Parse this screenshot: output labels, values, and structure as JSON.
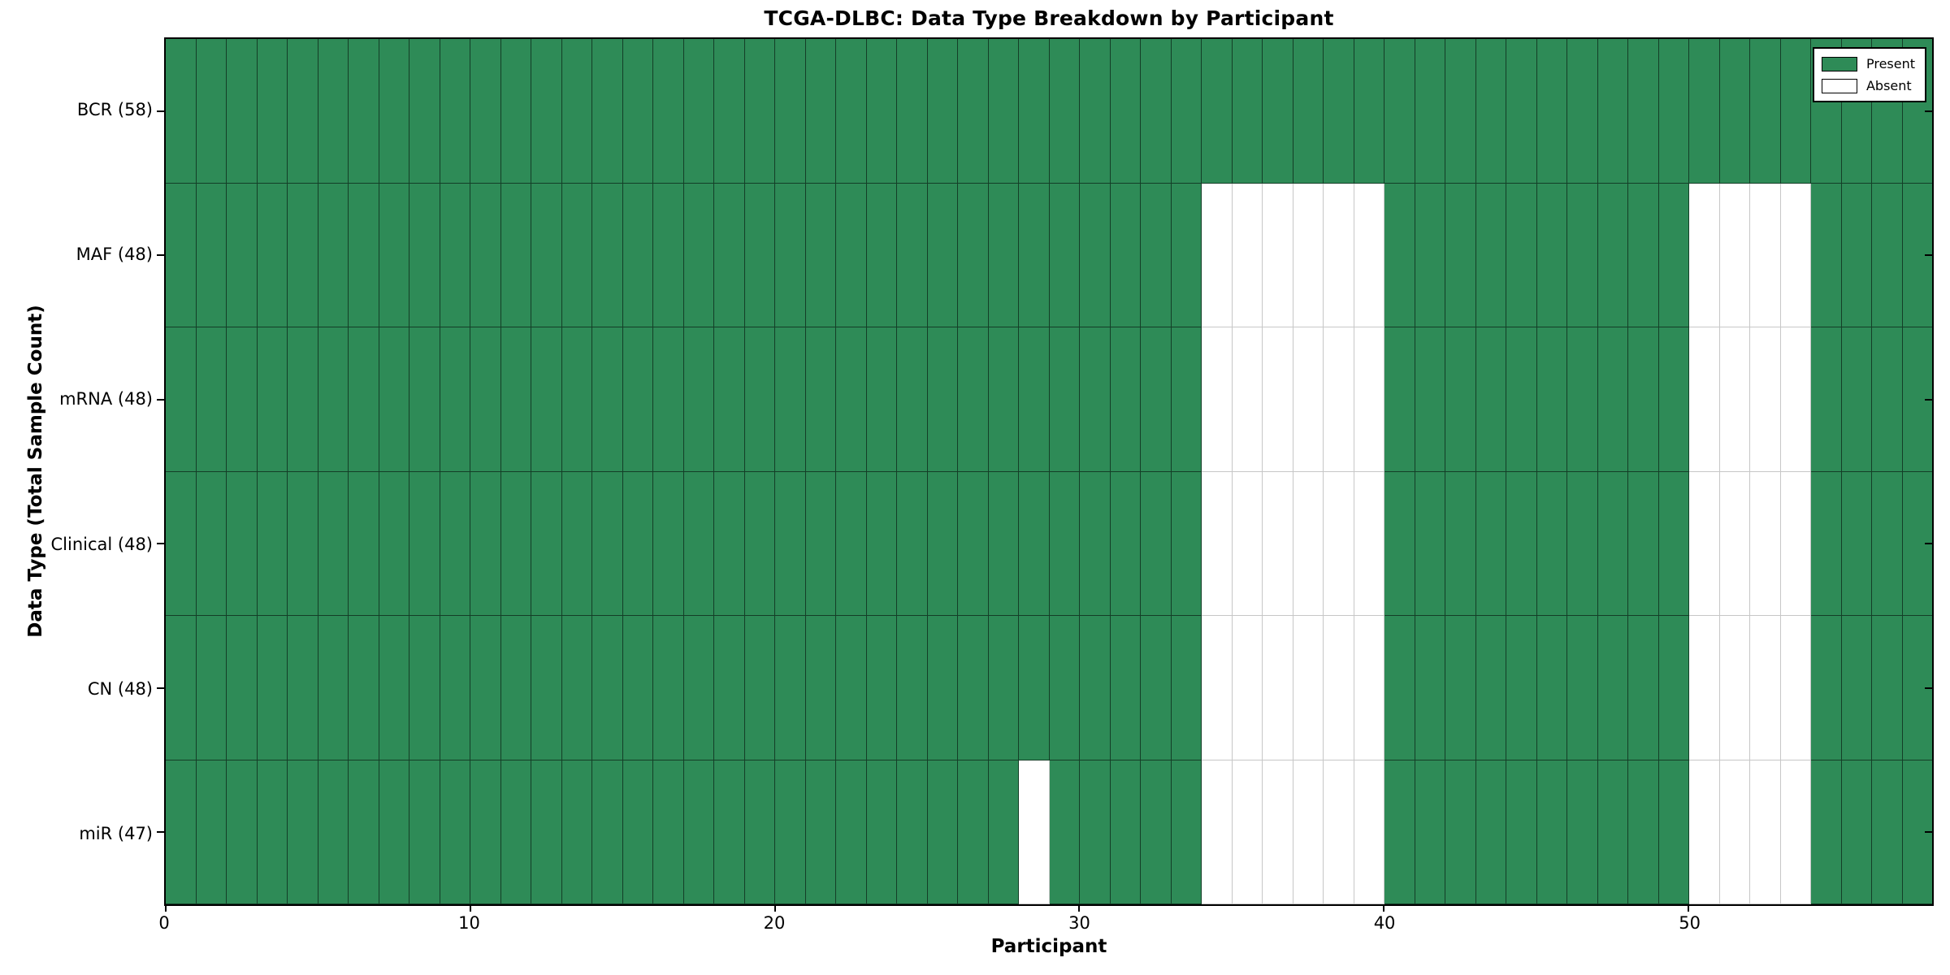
{
  "chart_data": {
    "type": "heatmap",
    "title": "TCGA-DLBC: Data Type Breakdown by Participant",
    "xlabel": "Participant",
    "ylabel": "Data Type (Total Sample Count)",
    "n_participants": 58,
    "xlim": [
      0,
      58
    ],
    "x_ticks": [
      0,
      10,
      20,
      30,
      40,
      50
    ],
    "grid": true,
    "legend_position": "upper right",
    "colors": {
      "present": "#2e8b57",
      "absent": "#ffffff",
      "edge": "#000000"
    },
    "legend": [
      {
        "label": "Present",
        "color": "#2e8b57"
      },
      {
        "label": "Absent",
        "color": "#ffffff"
      }
    ],
    "rows": [
      {
        "label": "BCR (58)",
        "name": "BCR",
        "total": 58,
        "absent_participants": []
      },
      {
        "label": "MAF (48)",
        "name": "MAF",
        "total": 48,
        "absent_participants": [
          34,
          35,
          36,
          37,
          38,
          39,
          50,
          51,
          52,
          53
        ]
      },
      {
        "label": "mRNA (48)",
        "name": "mRNA",
        "total": 48,
        "absent_participants": [
          34,
          35,
          36,
          37,
          38,
          39,
          50,
          51,
          52,
          53
        ]
      },
      {
        "label": "Clinical (48)",
        "name": "Clinical",
        "total": 48,
        "absent_participants": [
          34,
          35,
          36,
          37,
          38,
          39,
          50,
          51,
          52,
          53
        ]
      },
      {
        "label": "CN (48)",
        "name": "CN",
        "total": 48,
        "absent_participants": [
          34,
          35,
          36,
          37,
          38,
          39,
          50,
          51,
          52,
          53
        ]
      },
      {
        "label": "miR (47)",
        "name": "miR",
        "total": 47,
        "absent_participants": [
          28,
          34,
          35,
          36,
          37,
          38,
          39,
          50,
          51,
          52,
          53
        ]
      }
    ]
  }
}
